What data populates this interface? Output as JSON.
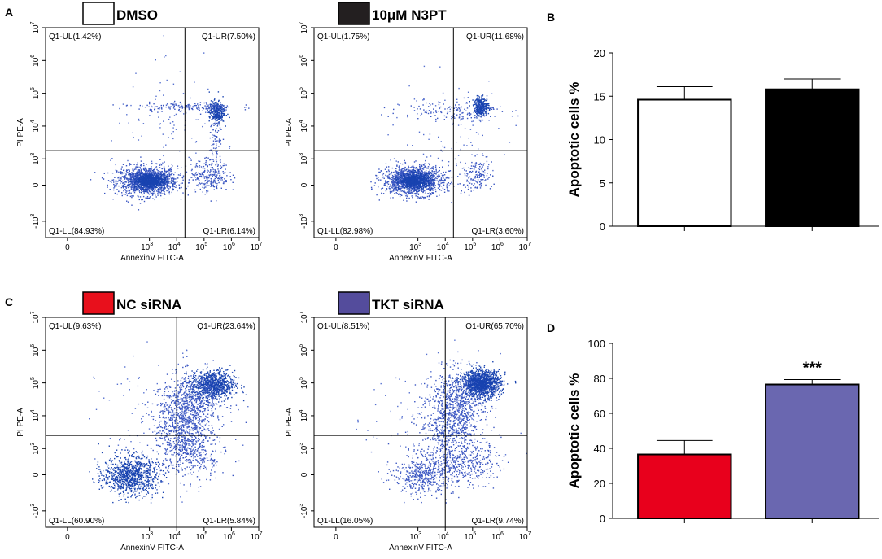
{
  "chart_data": [
    {
      "panel": "A",
      "type": "scatter",
      "subtype": "flow-cytometry-quadrant",
      "title": "DMSO",
      "legend_color": "#ffffff",
      "xlabel": "AnnexinV FITC-A",
      "ylabel": "PI PE-A",
      "quadrants": {
        "UL": "Q1-UL(1.42%)",
        "UR": "Q1-UR(7.50%)",
        "LL": "Q1-LL(84.93%)",
        "LR": "Q1-LR(6.14%)"
      },
      "gate_x_log": 4.3,
      "gate_y_log": 3.25,
      "clusters": [
        {
          "x": 2.9,
          "y": 2.35,
          "sx": 0.55,
          "sy": 0.22,
          "n": 1300,
          "c": "#3a56c2"
        },
        {
          "x": 3.0,
          "y": 2.35,
          "sx": 0.3,
          "sy": 0.12,
          "n": 700,
          "c": "#1843b0"
        },
        {
          "x": 5.45,
          "y": 4.45,
          "sx": 0.14,
          "sy": 0.17,
          "n": 300,
          "c": "#1843b0"
        },
        {
          "x": 5.2,
          "y": 2.5,
          "sx": 0.35,
          "sy": 0.25,
          "n": 250,
          "c": "#3a56c2"
        },
        {
          "x": 4.3,
          "y": 4.6,
          "sx": 0.9,
          "sy": 0.07,
          "n": 160,
          "c": "#3a56c2"
        },
        {
          "x": 5.4,
          "y": 3.5,
          "sx": 0.12,
          "sy": 0.5,
          "n": 80,
          "c": "#3a56c2"
        },
        {
          "x": 4.0,
          "y": 3.8,
          "sx": 1.2,
          "sy": 0.9,
          "n": 110,
          "c": "#5570d0"
        }
      ]
    },
    {
      "panel": "A2",
      "type": "scatter",
      "subtype": "flow-cytometry-quadrant",
      "title": "10μM N3PT",
      "legend_color": "#231f20",
      "xlabel": "AnnexinV FITC-A",
      "ylabel": "PI PE-A",
      "quadrants": {
        "UL": "Q1-UL(1.75%)",
        "UR": "Q1-UR(11.68%)",
        "LL": "Q1-LL(82.98%)",
        "LR": "Q1-LR(3.60%)"
      },
      "gate_x_log": 4.3,
      "gate_y_log": 3.25,
      "clusters": [
        {
          "x": 2.8,
          "y": 2.35,
          "sx": 0.55,
          "sy": 0.22,
          "n": 1300,
          "c": "#3a56c2"
        },
        {
          "x": 2.9,
          "y": 2.35,
          "sx": 0.3,
          "sy": 0.12,
          "n": 700,
          "c": "#1843b0"
        },
        {
          "x": 5.3,
          "y": 4.6,
          "sx": 0.14,
          "sy": 0.14,
          "n": 300,
          "c": "#1843b0"
        },
        {
          "x": 5.1,
          "y": 2.5,
          "sx": 0.3,
          "sy": 0.25,
          "n": 150,
          "c": "#3a56c2"
        },
        {
          "x": 4.2,
          "y": 4.5,
          "sx": 0.9,
          "sy": 0.15,
          "n": 120,
          "c": "#3a56c2"
        },
        {
          "x": 4.0,
          "y": 3.8,
          "sx": 1.2,
          "sy": 0.9,
          "n": 120,
          "c": "#5570d0"
        }
      ]
    },
    {
      "panel": "B",
      "type": "bar",
      "categories": [
        "DMSO",
        "10μM N3PT"
      ],
      "values": [
        14.6,
        15.8
      ],
      "errors": [
        1.5,
        1.2
      ],
      "colors": [
        "#ffffff",
        "#000000"
      ],
      "ylabel": "Apoptotic cells %",
      "ylim": [
        0,
        20
      ],
      "yticks": [
        "0",
        "5",
        "10",
        "15",
        "20"
      ]
    },
    {
      "panel": "C",
      "type": "scatter",
      "subtype": "flow-cytometry-quadrant",
      "title": "NC siRNA",
      "legend_color": "#e8101c",
      "xlabel": "AnnexinV FITC-A",
      "ylabel": "PI PE-A",
      "quadrants": {
        "UL": "Q1-UL(9.63%)",
        "UR": "Q1-UR(23.64%)",
        "LL": "Q1-LL(60.90%)",
        "LR": "Q1-LR(5.84%)"
      },
      "gate_x_log": 4.0,
      "gate_y_log": 3.4,
      "clusters": [
        {
          "x": 2.3,
          "y": 2.2,
          "sx": 0.5,
          "sy": 0.3,
          "n": 900,
          "c": "#1843b0"
        },
        {
          "x": 5.3,
          "y": 4.95,
          "sx": 0.4,
          "sy": 0.22,
          "n": 800,
          "c": "#1843b0"
        },
        {
          "x": 4.2,
          "y": 3.6,
          "sx": 0.45,
          "sy": 0.55,
          "n": 700,
          "c": "#3a56c2"
        },
        {
          "x": 4.6,
          "y": 4.5,
          "sx": 0.6,
          "sy": 0.4,
          "n": 500,
          "c": "#3a56c2"
        },
        {
          "x": 4.6,
          "y": 2.7,
          "sx": 0.6,
          "sy": 0.35,
          "n": 200,
          "c": "#3a56c2"
        },
        {
          "x": 3.5,
          "y": 3.8,
          "sx": 1.2,
          "sy": 1.0,
          "n": 150,
          "c": "#5570d0"
        }
      ]
    },
    {
      "panel": "C2",
      "type": "scatter",
      "subtype": "flow-cytometry-quadrant",
      "title": "TKT siRNA",
      "legend_color": "#544c9c",
      "xlabel": "AnnexinV FITC-A",
      "ylabel": "PI PE-A",
      "quadrants": {
        "UL": "Q1-UL(8.51%)",
        "UR": "Q1-UR(65.70%)",
        "LL": "Q1-LL(16.05%)",
        "LR": "Q1-LR(9.74%)"
      },
      "gate_x_log": 4.0,
      "gate_y_log": 3.4,
      "clusters": [
        {
          "x": 5.3,
          "y": 5.0,
          "sx": 0.35,
          "sy": 0.2,
          "n": 1300,
          "c": "#1843b0"
        },
        {
          "x": 4.4,
          "y": 4.3,
          "sx": 0.5,
          "sy": 0.55,
          "n": 700,
          "c": "#3a56c2"
        },
        {
          "x": 3.2,
          "y": 2.2,
          "sx": 0.55,
          "sy": 0.3,
          "n": 450,
          "c": "#3a56c2"
        },
        {
          "x": 4.8,
          "y": 2.6,
          "sx": 0.6,
          "sy": 0.35,
          "n": 300,
          "c": "#3a56c2"
        },
        {
          "x": 4.0,
          "y": 3.4,
          "sx": 0.5,
          "sy": 0.6,
          "n": 300,
          "c": "#3a56c2"
        },
        {
          "x": 3.6,
          "y": 3.9,
          "sx": 1.2,
          "sy": 1.0,
          "n": 150,
          "c": "#5570d0"
        }
      ]
    },
    {
      "panel": "D",
      "type": "bar",
      "categories": [
        "NC siRNA",
        "TKT siRNA"
      ],
      "values": [
        36.5,
        76.5
      ],
      "errors": [
        8.0,
        2.8
      ],
      "colors": [
        "#e8001c",
        "#6a67b0"
      ],
      "ylabel": "Apoptotic cells %",
      "ylim": [
        0,
        100
      ],
      "yticks": [
        "0",
        "20",
        "40",
        "60",
        "80",
        "100"
      ],
      "annotation": "***"
    }
  ],
  "flow_axis": {
    "x_ticks": [
      "0",
      "10",
      "10",
      "10",
      "10",
      "10"
    ],
    "x_exps": [
      "",
      "3",
      "4",
      "5",
      "6",
      "7"
    ],
    "y_ticks": [
      "-10",
      "0",
      "10",
      "10",
      "10",
      "10",
      "10"
    ],
    "y_exps": [
      "3",
      "",
      "3",
      "4",
      "5",
      "6",
      "7"
    ]
  },
  "panel_labels": {
    "A": "A",
    "B": "B",
    "C": "C",
    "D": "D"
  }
}
